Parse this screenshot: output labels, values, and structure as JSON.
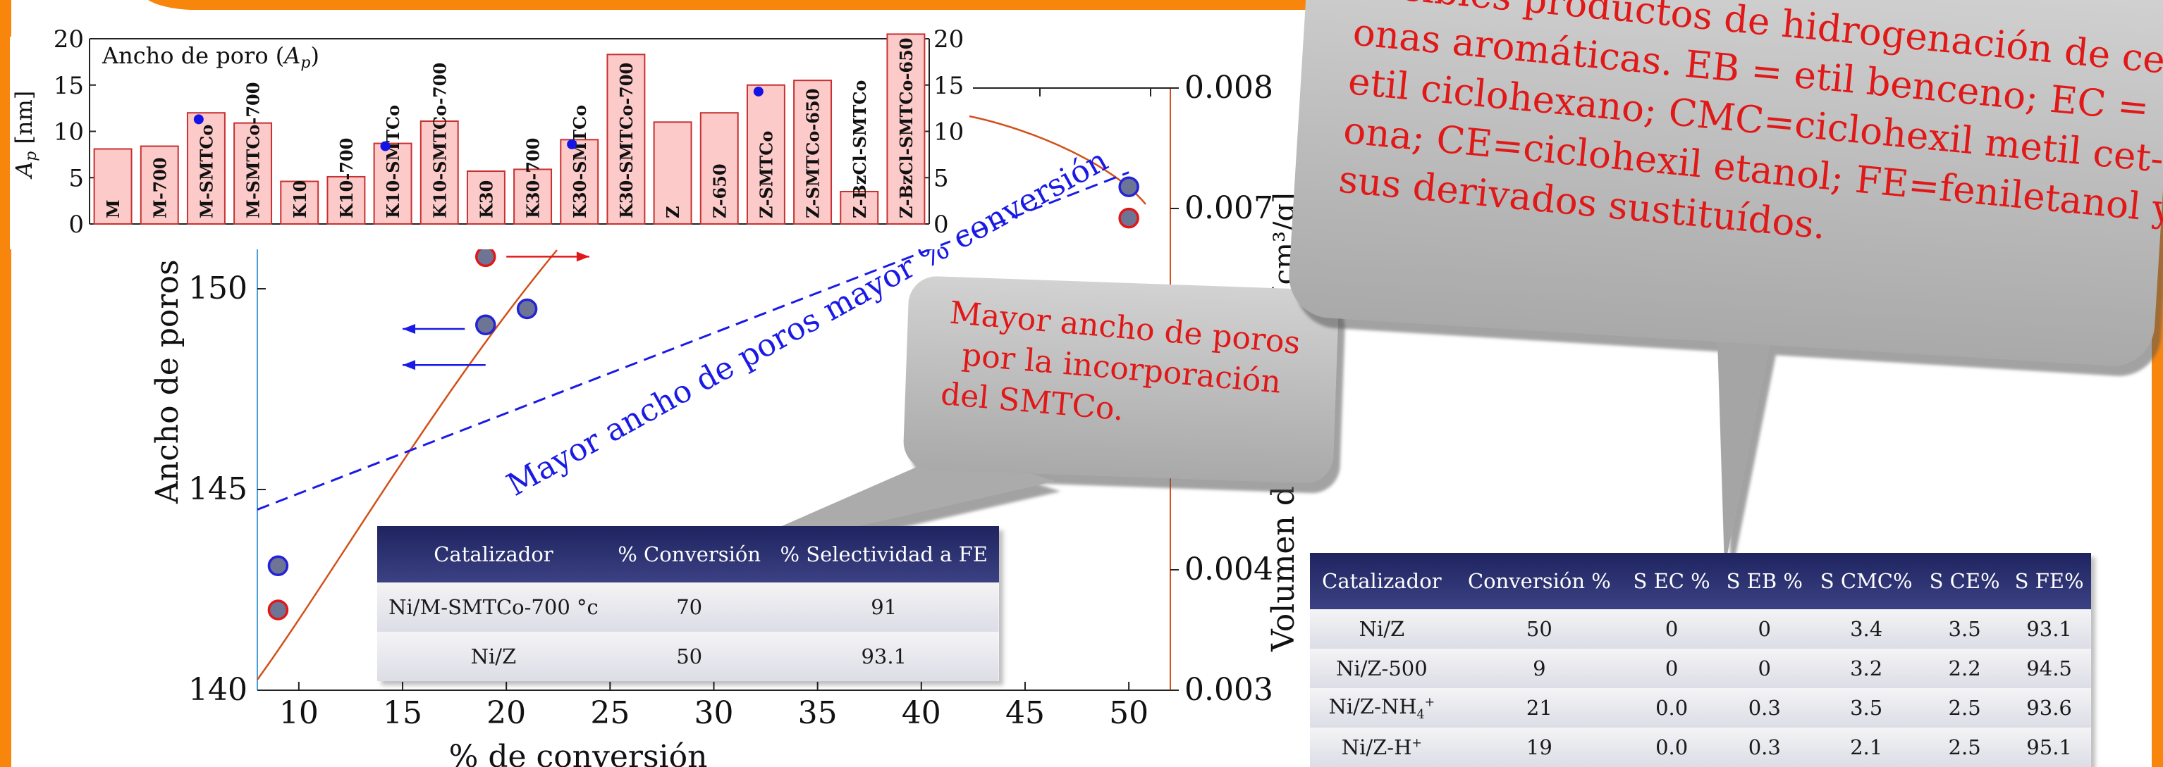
{
  "colors": {
    "orange": "#f8860d",
    "background": "#c9c8f3",
    "white": "#ffffff",
    "red_text": "#e11818",
    "blue_line": "#1a1ae6",
    "curve": "#d2501a",
    "bar_fill": "#fdcaca",
    "bar_stroke": "#c83030"
  },
  "chart_data": [
    {
      "type": "scatter",
      "xlabel": "% de conversión",
      "ylabel_left": "Ancho de poros [",
      "ylabel_right": "Volumen d",
      "ylabel_right_unit": "[cm³/g]",
      "xlim": [
        8,
        52
      ],
      "ylim_left": [
        140,
        155
      ],
      "ylim_right": [
        0.003,
        0.008
      ],
      "x_ticks": [
        "10",
        "15",
        "20",
        "25",
        "30",
        "35",
        "40",
        "45",
        "50"
      ],
      "y_ticks_left": [
        "140",
        "145",
        "150"
      ],
      "y_ticks_right": [
        "0.003",
        "0.004",
        "0.007",
        "0.008"
      ],
      "series": [
        {
          "marker": "blue-fill",
          "points": [
            [
              9,
              143.1
            ],
            [
              19,
              149.1
            ],
            [
              21,
              149.5
            ],
            [
              50,
              0.00718
            ]
          ]
        },
        {
          "marker": "red-fill",
          "points": [
            [
              9,
              142.0
            ],
            [
              19,
              150.8
            ],
            [
              50,
              0.00692
            ]
          ]
        }
      ],
      "trend_line": {
        "from": [
          8,
          144.5
        ],
        "to": [
          50,
          0.0073
        ],
        "label": "Mayor ancho de poros mayor % de conversión"
      },
      "trend_label_visible": "Mayor ancho de poros mayor % conversión",
      "arrows": [
        {
          "y": 150.8,
          "x_from": 20,
          "x_to": 24,
          "direction": "right",
          "color": "#e11818"
        },
        {
          "y": 149.0,
          "x_from": 18,
          "x_to": 15,
          "direction": "left",
          "color": "#1a1ae6"
        },
        {
          "y": 148.1,
          "x_from": 19,
          "x_to": 15,
          "direction": "left",
          "color": "#1a1ae6"
        }
      ]
    },
    {
      "type": "bar",
      "title": "Ancho de poro (",
      "title_symbol": "A",
      "title_sub": "p",
      "title_end": ")",
      "ylabel": "A",
      "ylabel_sub": "p",
      "ylabel_unit": "[nm]",
      "ylim": [
        0,
        20
      ],
      "y_ticks": [
        "0",
        "5",
        "10",
        "15",
        "20"
      ],
      "categories": [
        "M",
        "M-700",
        "M-SMTCo",
        "M-SMTCo-700",
        "K10",
        "K10-700",
        "K10-SMTCo",
        "K10-SMTCo-700",
        "K30",
        "K30-700",
        "K30-SMTCo",
        "K30-SMTCo-700",
        "Z",
        "Z-650",
        "Z-SMTCo",
        "Z-SMTCo-650",
        "Z-BzCl-SMTCo",
        "Z-BzCl-SMTCo-650"
      ],
      "values": [
        8.1,
        8.4,
        12.0,
        10.9,
        4.6,
        5.1,
        8.7,
        11.1,
        5.7,
        5.9,
        9.1,
        18.3,
        11.0,
        12.0,
        15.0,
        15.5,
        3.5,
        20.5
      ],
      "markers": [
        {
          "category": "M-SMTCo",
          "value": 11.3
        },
        {
          "category": "K10-SMTCo",
          "value": 8.4
        },
        {
          "category": "K30-SMTCo",
          "value": 8.6
        },
        {
          "category": "Z-SMTCo",
          "value": 14.3
        }
      ]
    }
  ],
  "callout_pores": {
    "lines": [
      "Mayor ancho de poros",
      "por la incorporación",
      "del SMTCo."
    ]
  },
  "callout_products": {
    "lines": [
      "Posibles productos de hidrogenación de cet-",
      "onas aromáticas. EB = etil benceno; EC =",
      "etil ciclohexano; CMC=ciclohexil metil cet-",
      "ona; CE=ciclohexil etanol; FE=feniletanol y",
      "sus derivados sustituídos."
    ]
  },
  "table1": {
    "headers": [
      "Catalizador",
      "% Conversión",
      "% Selectividad a FE"
    ],
    "rows": [
      [
        "Ni/M-SMTCo-700 °c",
        "70",
        "91"
      ],
      [
        "Ni/Z",
        "50",
        "93.1"
      ]
    ]
  },
  "table2": {
    "headers": [
      "Catalizador",
      "Conversión %",
      "S EC %",
      "S EB %",
      "S CMC%",
      "S CE%",
      "S FE%"
    ],
    "rows": [
      {
        "cat": "Ni/Z",
        "vals": [
          "50",
          "0",
          "0",
          "3.4",
          "3.5",
          "93.1"
        ]
      },
      {
        "cat": "Ni/Z-500",
        "vals": [
          "9",
          "0",
          "0",
          "3.2",
          "2.2",
          "94.5"
        ]
      },
      {
        "cat_base": "Ni/Z-NH",
        "cat_sub": "4",
        "cat_sup": "+",
        "vals": [
          "21",
          "0.0",
          "0.3",
          "3.5",
          "2.5",
          "93.6"
        ]
      },
      {
        "cat_base": "Ni/Z-H",
        "cat_sup": "+",
        "vals": [
          "19",
          "0.0",
          "0.3",
          "2.1",
          "2.5",
          "95.1"
        ]
      }
    ]
  }
}
